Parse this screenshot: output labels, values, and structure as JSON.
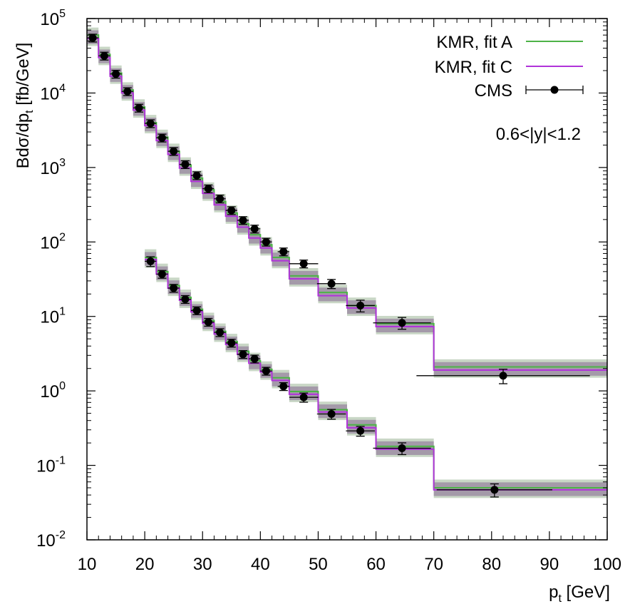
{
  "chart_data": {
    "type": "line",
    "title": "",
    "xlabel_base": "p",
    "xlabel_sub": "t",
    "xlabel_unit": " [GeV]",
    "ylabel_parts": [
      "Bdσ/dp",
      "t",
      " [fb/GeV]"
    ],
    "xlim": [
      10,
      100
    ],
    "ylim_log10": [
      -2,
      5
    ],
    "yscale": "log",
    "x_ticks": [
      10,
      20,
      30,
      40,
      50,
      60,
      70,
      80,
      90,
      100
    ],
    "y_tick_exponents": [
      -2,
      -1,
      0,
      1,
      2,
      3,
      4,
      5
    ],
    "y_tick_base": "10",
    "annotation": "0.6<|y|<1.2",
    "legend_position": "top-right",
    "legend": [
      {
        "label": "KMR, fit A",
        "kind": "line",
        "color": "#4db347"
      },
      {
        "label": "KMR, fit C",
        "kind": "line",
        "color": "#b033d9"
      },
      {
        "label": "CMS",
        "kind": "points",
        "color": "#000000"
      }
    ],
    "bin_edges_upper": [
      10,
      12,
      14,
      16,
      18,
      20,
      22,
      24,
      26,
      28,
      30,
      32,
      34,
      36,
      38,
      40,
      42,
      45,
      50,
      55,
      60,
      70,
      100
    ],
    "bin_edges_lower": [
      20,
      22,
      24,
      26,
      28,
      30,
      32,
      34,
      36,
      38,
      40,
      42,
      45,
      50,
      55,
      60,
      70,
      100
    ],
    "series": [
      {
        "name": "KMR, fit A (upper)",
        "color": "#4db347",
        "values": [
          60000,
          33000,
          18500,
          11000,
          6500,
          4000,
          2550,
          1650,
          1080,
          720,
          500,
          350,
          245,
          175,
          125,
          92,
          62,
          35,
          21,
          14,
          8.0,
          2.1
        ]
      },
      {
        "name": "KMR, fit C (upper)",
        "color": "#b033d9",
        "values": [
          54000,
          30000,
          16800,
          10000,
          5900,
          3650,
          2300,
          1500,
          980,
          650,
          450,
          315,
          222,
          158,
          113,
          83,
          56,
          32,
          19,
          13,
          7.3,
          1.9
        ]
      },
      {
        "name": "KMR, fit A (lower)",
        "color": "#4db347",
        "values": [
          62,
          40,
          26,
          18,
          12.5,
          8.8,
          6.3,
          4.6,
          3.4,
          2.55,
          1.95,
          1.5,
          0.98,
          0.56,
          0.35,
          0.18,
          0.05
        ]
      },
      {
        "name": "KMR, fit C (lower)",
        "color": "#b033d9",
        "values": [
          58,
          37,
          24,
          16.5,
          11.5,
          8.1,
          5.8,
          4.2,
          3.1,
          2.35,
          1.8,
          1.38,
          0.9,
          0.52,
          0.32,
          0.165,
          0.047
        ]
      },
      {
        "name": "CMS (upper)",
        "color": "#000000",
        "x": [
          11,
          13,
          15,
          17,
          19,
          21,
          23,
          25,
          27,
          29,
          31,
          33,
          35,
          37,
          39,
          41,
          44,
          47.5,
          52.3,
          57.3,
          64.5,
          82
        ],
        "xerr": [
          1,
          1,
          1,
          1,
          1,
          1,
          1,
          1,
          1,
          1,
          1,
          1,
          1,
          1,
          1,
          1,
          1,
          2.5,
          2.5,
          2.5,
          5,
          15
        ],
        "values": [
          55000,
          31500,
          18000,
          10500,
          6300,
          3900,
          2500,
          1650,
          1100,
          780,
          520,
          380,
          265,
          195,
          150,
          100,
          74,
          51,
          27.5,
          14,
          8.2,
          1.6
        ],
        "yerr_rel": [
          0.12,
          0.12,
          0.12,
          0.12,
          0.12,
          0.12,
          0.12,
          0.12,
          0.12,
          0.12,
          0.12,
          0.12,
          0.12,
          0.12,
          0.12,
          0.12,
          0.12,
          0.12,
          0.14,
          0.18,
          0.18,
          0.22
        ]
      },
      {
        "name": "CMS (lower)",
        "color": "#000000",
        "x": [
          21,
          23,
          25,
          27,
          29,
          31,
          33,
          35,
          37,
          39,
          41,
          44,
          47.5,
          52.3,
          57.3,
          64.5,
          80.5
        ],
        "xerr": [
          1,
          1,
          1,
          1,
          1,
          1,
          1,
          1,
          1,
          1,
          1,
          1,
          2.5,
          2.5,
          2.5,
          5,
          10
        ],
        "values": [
          55,
          37,
          24,
          17,
          12,
          8.4,
          6.1,
          4.4,
          3.1,
          2.7,
          1.85,
          1.15,
          0.82,
          0.49,
          0.29,
          0.17,
          0.047
        ],
        "yerr_rel": [
          0.15,
          0.12,
          0.12,
          0.12,
          0.12,
          0.12,
          0.12,
          0.12,
          0.12,
          0.12,
          0.12,
          0.12,
          0.14,
          0.15,
          0.15,
          0.18,
          0.2
        ]
      }
    ]
  }
}
